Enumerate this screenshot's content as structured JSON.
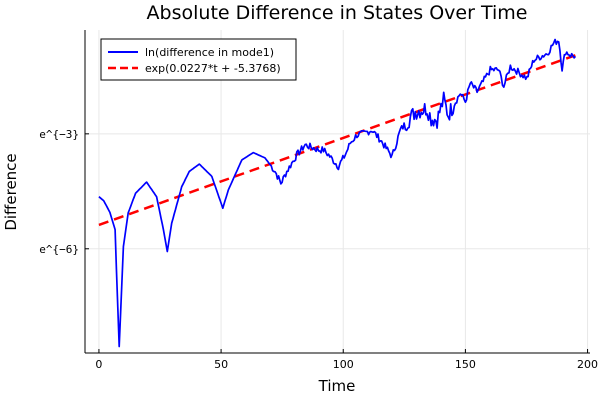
{
  "chart_data": {
    "type": "line",
    "title": "Absolute Difference in States Over Time",
    "xlabel": "Time",
    "ylabel": "Difference",
    "xlim": [
      -5.7,
      201
    ],
    "ylim_ln": [
      -8.72,
      -0.29
    ],
    "yscale": "log (natural)",
    "xticks": [
      0,
      50,
      100,
      150,
      200
    ],
    "xtick_labels": [
      "0",
      "50",
      "100",
      "150",
      "200"
    ],
    "yticks_ln": [
      -3,
      -6
    ],
    "ytick_labels": [
      "e^{−3}",
      "e^{−6}"
    ],
    "grid": true,
    "legend_position": "top-left",
    "series": [
      {
        "name": "ln(difference in mode1)",
        "color": "#0000ff",
        "style": "solid",
        "t": [
          0,
          2,
          4.5,
          6.6,
          8.3,
          10,
          12,
          15,
          19.5,
          23.6,
          26.4,
          28,
          29.8,
          33.9,
          37,
          41.1,
          46.2,
          50.7,
          53,
          58.5,
          63.2,
          68,
          72.1,
          74.5,
          76.9,
          81,
          84.4,
          89.9,
          91.9,
          94,
          98,
          100.8,
          102.9,
          105.6,
          108,
          111.8,
          115.2,
          120,
          123.4,
          129.5,
          134.3,
          136,
          138.4,
          141.1,
          143,
          147.9,
          150,
          152,
          154.8,
          160.2,
          163.6,
          165.7,
          168.4,
          172,
          175.2,
          178,
          183.5,
          186.2,
          188.2,
          189.6,
          191,
          193,
          195
        ],
        "ln_values": [
          -4.64,
          -4.75,
          -5.05,
          -5.5,
          -8.55,
          -5.94,
          -5.06,
          -4.55,
          -4.26,
          -4.64,
          -5.5,
          -6.07,
          -5.33,
          -4.38,
          -3.98,
          -3.79,
          -4.11,
          -4.94,
          -4.46,
          -3.68,
          -3.49,
          -3.63,
          -3.98,
          -4.29,
          -3.98,
          -3.55,
          -3.29,
          -3.42,
          -3.42,
          -3.55,
          -3.85,
          -3.55,
          -3.24,
          -3.03,
          -3.0,
          -2.9,
          -3.16,
          -3.59,
          -2.9,
          -2.42,
          -2.33,
          -2.6,
          -2.63,
          -2.11,
          -2.5,
          -1.94,
          -2.16,
          -1.68,
          -1.9,
          -1.33,
          -1.33,
          -1.76,
          -1.24,
          -1.4,
          -1.55,
          -1.07,
          -0.9,
          -0.63,
          -0.55,
          -1.29,
          -0.85,
          -0.94,
          -0.98
        ]
      },
      {
        "name": "exp(0.0227*t + -5.3768)",
        "color": "#ff0000",
        "style": "dashed",
        "slope": 0.0227,
        "intercept": -5.3768,
        "t_range": [
          0,
          195
        ]
      }
    ]
  }
}
